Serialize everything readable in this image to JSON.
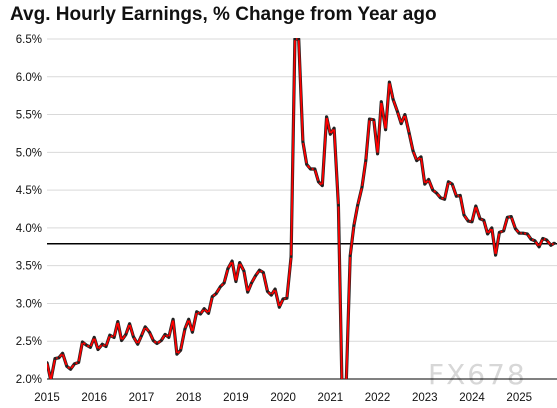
{
  "title": "Avg. Hourly Earnings, % Change from Year ago",
  "watermark": "FX678",
  "colors": {
    "series": "#ff0000",
    "series_edge": "#222222",
    "reference": "#000000",
    "grid": "#d9d9d9",
    "axis": "#000000"
  },
  "chart_data": {
    "type": "line",
    "title": "Avg. Hourly Earnings, % Change from Year ago",
    "xlabel": "",
    "ylabel": "",
    "xlim": [
      2015.0,
      2025.8
    ],
    "ylim": [
      2.0,
      6.5
    ],
    "yticks": [
      2.0,
      2.5,
      3.0,
      3.5,
      4.0,
      4.5,
      5.0,
      5.5,
      6.0,
      6.5
    ],
    "ytick_labels": [
      "2.0%",
      "2.5%",
      "3.0%",
      "3.5%",
      "4.0%",
      "4.5%",
      "5.0%",
      "5.5%",
      "6.0%",
      "6.5%"
    ],
    "xticks": [
      2015,
      2016,
      2017,
      2018,
      2019,
      2020,
      2021,
      2022,
      2023,
      2024,
      2025
    ],
    "xtick_labels": [
      "2015",
      "2016",
      "2017",
      "2018",
      "2019",
      "2020",
      "2021",
      "2022",
      "2023",
      "2024",
      "2025"
    ],
    "grid": "horizontal",
    "reference_line": 3.79,
    "series": [
      {
        "x": [
          2015.0,
          2015.08,
          2015.17,
          2015.25,
          2015.33,
          2015.42,
          2015.5,
          2015.58,
          2015.67,
          2015.75,
          2015.83,
          2015.92,
          2016.0,
          2016.08,
          2016.17,
          2016.25,
          2016.33,
          2016.42,
          2016.5,
          2016.58,
          2016.67,
          2016.75,
          2016.83,
          2016.92,
          2017.0,
          2017.08,
          2017.17,
          2017.25,
          2017.33,
          2017.42,
          2017.5,
          2017.58,
          2017.67,
          2017.75,
          2017.83,
          2017.92,
          2018.0,
          2018.08,
          2018.17,
          2018.25,
          2018.33,
          2018.42,
          2018.5,
          2018.58,
          2018.67,
          2018.75,
          2018.83,
          2018.92,
          2019.0,
          2019.08,
          2019.17,
          2019.25,
          2019.33,
          2019.42,
          2019.5,
          2019.58,
          2019.67,
          2019.75,
          2019.83,
          2019.92,
          2020.0,
          2020.08,
          2020.17,
          2020.25,
          2020.33,
          2020.42,
          2020.5,
          2020.58,
          2020.67,
          2020.75,
          2020.83,
          2020.92,
          2021.0,
          2021.08,
          2021.17,
          2021.25,
          2021.33,
          2021.42,
          2021.5,
          2021.58,
          2021.67,
          2021.75,
          2021.83,
          2021.92,
          2022.0,
          2022.08,
          2022.17,
          2022.25,
          2022.33,
          2022.42,
          2022.5,
          2022.58,
          2022.67,
          2022.75,
          2022.83,
          2022.92,
          2023.0,
          2023.08,
          2023.17,
          2023.25,
          2023.33,
          2023.42,
          2023.5,
          2023.58,
          2023.67,
          2023.75,
          2023.83,
          2023.92,
          2024.0,
          2024.08,
          2024.17,
          2024.25,
          2024.33,
          2024.42,
          2024.5,
          2024.58,
          2024.67,
          2024.75,
          2024.83,
          2024.92,
          2025.0,
          2025.08,
          2025.17,
          2025.25,
          2025.33,
          2025.42,
          2025.5,
          2025.58,
          2025.67,
          2025.75
        ],
        "values": [
          2.22,
          1.98,
          2.27,
          2.28,
          2.34,
          2.17,
          2.13,
          2.2,
          2.22,
          2.49,
          2.45,
          2.42,
          2.55,
          2.39,
          2.46,
          2.43,
          2.58,
          2.55,
          2.76,
          2.51,
          2.59,
          2.73,
          2.56,
          2.46,
          2.57,
          2.69,
          2.62,
          2.51,
          2.47,
          2.51,
          2.59,
          2.55,
          2.79,
          2.33,
          2.38,
          2.66,
          2.79,
          2.62,
          2.89,
          2.86,
          2.93,
          2.87,
          3.09,
          3.13,
          3.22,
          3.27,
          3.46,
          3.56,
          3.29,
          3.54,
          3.43,
          3.15,
          3.27,
          3.37,
          3.44,
          3.41,
          3.16,
          3.11,
          3.19,
          2.95,
          3.06,
          3.07,
          3.62,
          6.5,
          6.5,
          5.14,
          4.84,
          4.78,
          4.78,
          4.61,
          4.56,
          5.47,
          5.24,
          5.32,
          4.3,
          1.82,
          1.8,
          3.63,
          4.03,
          4.3,
          4.54,
          4.89,
          5.44,
          5.43,
          4.98,
          5.67,
          5.3,
          5.93,
          5.7,
          5.54,
          5.38,
          5.5,
          5.25,
          5.02,
          4.89,
          4.94,
          4.58,
          4.64,
          4.5,
          4.46,
          4.4,
          4.38,
          4.61,
          4.58,
          4.42,
          4.43,
          4.17,
          4.09,
          4.08,
          4.29,
          4.12,
          4.1,
          3.92,
          4.0,
          3.64,
          3.94,
          3.96,
          4.14,
          4.15,
          3.99,
          3.93,
          3.93,
          3.92,
          3.85,
          3.83,
          3.75,
          3.86,
          3.84,
          3.77,
          3.8
        ]
      }
    ]
  }
}
